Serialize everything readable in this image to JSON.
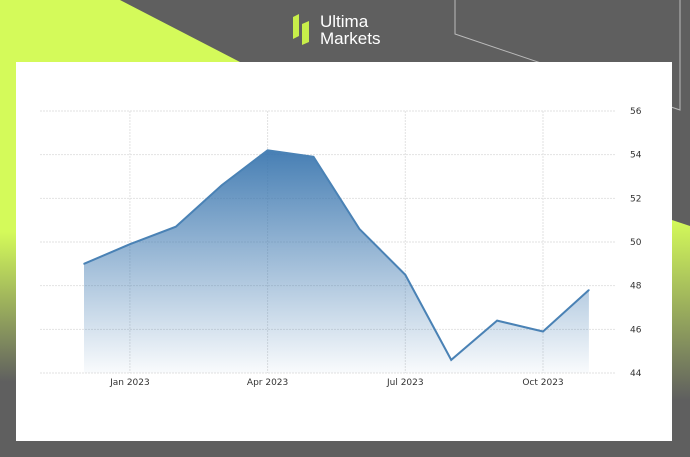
{
  "brand": {
    "name_line1": "Ultima",
    "name_line2": "Markets",
    "accent": "#d4fa5a",
    "background": "#5f5f5f"
  },
  "chart_data": {
    "type": "area",
    "title": "",
    "xlabel": "",
    "ylabel": "",
    "x": [
      "2022-12",
      "2023-01",
      "2023-02",
      "2023-03",
      "2023-04",
      "2023-05",
      "2023-06",
      "2023-07",
      "2023-08",
      "2023-09",
      "2023-10",
      "2023-11"
    ],
    "values": [
      49.0,
      49.9,
      50.7,
      52.6,
      54.2,
      53.9,
      50.6,
      48.5,
      44.6,
      46.4,
      45.9,
      47.8
    ],
    "ylim": [
      44,
      56
    ],
    "yticks": [
      "44",
      "46",
      "48",
      "50",
      "52",
      "54",
      "56"
    ],
    "xticks": [
      {
        "label": "Jan 2023",
        "at": "2023-01"
      },
      {
        "label": "Apr 2023",
        "at": "2023-04"
      },
      {
        "label": "Jul 2023",
        "at": "2023-07"
      },
      {
        "label": "Oct 2023",
        "at": "2023-10"
      }
    ],
    "grid": true,
    "y_axis_side": "right",
    "line_color": "#4a82b5"
  }
}
